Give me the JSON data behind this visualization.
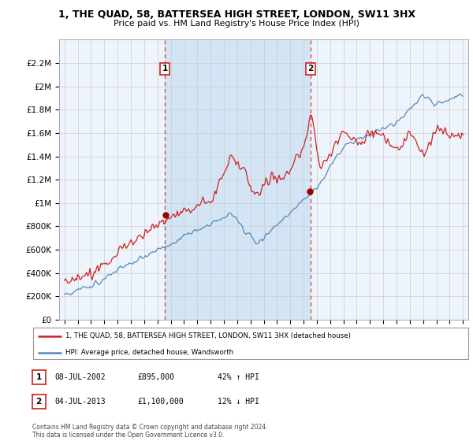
{
  "title": "1, THE QUAD, 58, BATTERSEA HIGH STREET, LONDON, SW11 3HX",
  "subtitle": "Price paid vs. HM Land Registry's House Price Index (HPI)",
  "hpi_color": "#5588bb",
  "price_color": "#cc2222",
  "background_color": "#ffffff",
  "plot_bg_color": "#eef4fb",
  "shade_color": "#d0e4f5",
  "grid_color": "#cccccc",
  "sale1_date": 2002.55,
  "sale2_date": 2013.52,
  "legend_line1": "1, THE QUAD, 58, BATTERSEA HIGH STREET, LONDON, SW11 3HX (detached house)",
  "legend_line2": "HPI: Average price, detached house, Wandsworth",
  "footer": "Contains HM Land Registry data © Crown copyright and database right 2024.\nThis data is licensed under the Open Government Licence v3.0.",
  "ylim": [
    0,
    2400000
  ],
  "yticks": [
    0,
    200000,
    400000,
    600000,
    800000,
    1000000,
    1200000,
    1400000,
    1600000,
    1800000,
    2000000,
    2200000
  ],
  "ytick_labels": [
    "£0",
    "£200K",
    "£400K",
    "£600K",
    "£800K",
    "£1M",
    "£1.2M",
    "£1.4M",
    "£1.6M",
    "£1.8M",
    "£2M",
    "£2.2M"
  ],
  "xmin": 1994.6,
  "xmax": 2025.4,
  "sale1_price": 895000,
  "sale2_price": 1100000
}
